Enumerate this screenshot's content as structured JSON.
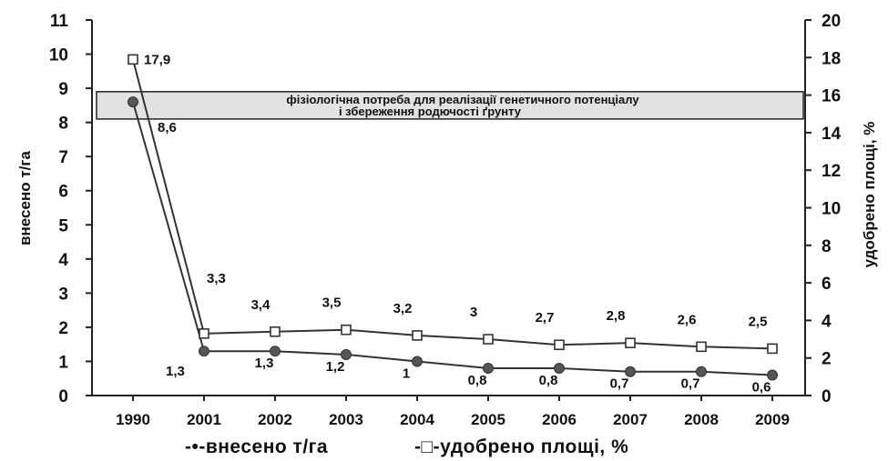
{
  "chart_data": {
    "type": "line",
    "categories": [
      "1990",
      "2001",
      "2002",
      "2003",
      "2004",
      "2005",
      "2006",
      "2007",
      "2008",
      "2009"
    ],
    "y_left": {
      "label": "внесено т/га",
      "min": 0,
      "max": 11,
      "step": 1
    },
    "y_right": {
      "label": "удобрено площі, %",
      "min": 0,
      "max": 20,
      "step": 2
    },
    "series": [
      {
        "name": "внесено т/га",
        "axis": "left",
        "marker": "filled-circle",
        "values": [
          8.6,
          1.3,
          1.3,
          1.2,
          1,
          0.8,
          0.8,
          0.7,
          0.7,
          0.6
        ],
        "labels": [
          "8,6",
          "1,3",
          "1,3",
          "1,2",
          "1",
          "0,8",
          "0,8",
          "0,7",
          "0,7",
          "0,6"
        ]
      },
      {
        "name": "удобрено площі, %",
        "axis": "right",
        "marker": "open-square",
        "values": [
          17.9,
          3.3,
          3.4,
          3.5,
          3.2,
          3,
          2.7,
          2.8,
          2.6,
          2.5
        ],
        "labels": [
          "17,9",
          "3,3",
          "3,4",
          "3,5",
          "3,2",
          "3",
          "2,7",
          "2,8",
          "2,6",
          "2,5"
        ]
      }
    ],
    "band": {
      "axis": "left",
      "from": 8.1,
      "to": 8.9,
      "text_line1": "фізіологічна потреба для реалізації генетичного потенціалу",
      "text_line2": "і збереження  родючості ґрунту",
      "color": "#e2e2e2"
    },
    "legend": [
      {
        "label": "-•-внесено т/га",
        "marker": "filled-circle"
      },
      {
        "label": "-□-удобрено площі, %",
        "marker": "open-square"
      }
    ],
    "legend_position": "bottom",
    "grid": false,
    "line_color": "#333333"
  }
}
